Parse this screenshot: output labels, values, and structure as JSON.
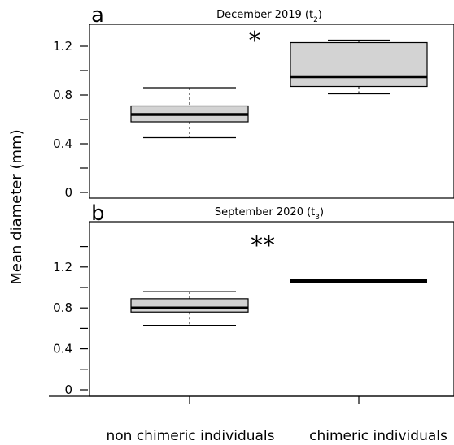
{
  "ylabel": "Mean diameter (mm)",
  "categories": [
    "non chimeric individuals",
    "chimeric individuals"
  ],
  "chart_data": [
    {
      "type": "boxplot",
      "panel_letter": "a",
      "title": "December 2019 (t",
      "title_sub": "2",
      "title_end": ")",
      "ylabel": "Mean diameter (mm)",
      "categories": [
        "non chimeric individuals",
        "chimeric individuals"
      ],
      "yticks": [
        0,
        0.4,
        0.8,
        1.2
      ],
      "ytick_labels": [
        "0",
        "0.4",
        "0.8",
        "1.2"
      ],
      "ylim": [
        0,
        1.3
      ],
      "annotation": "*",
      "boxes": [
        {
          "category": "non chimeric individuals",
          "min": 0.45,
          "q1": 0.58,
          "median": 0.64,
          "q3": 0.71,
          "max": 0.86
        },
        {
          "category": "chimeric individuals",
          "min": 0.81,
          "q1": 0.87,
          "median": 0.95,
          "q3": 1.23,
          "max": 1.25
        }
      ],
      "box_fill": "#d3d3d3"
    },
    {
      "type": "boxplot",
      "panel_letter": "b",
      "title": "September 2020 (t",
      "title_sub": "3",
      "title_end": ")",
      "ylabel": "Mean diameter (mm)",
      "categories": [
        "non chimeric individuals",
        "chimeric individuals"
      ],
      "yticks": [
        0,
        0.4,
        0.8,
        1.2
      ],
      "ytick_labels": [
        "0",
        "0.4",
        "0.8",
        "1.2"
      ],
      "ylim": [
        0,
        1.45
      ],
      "annotation": "**",
      "boxes": [
        {
          "category": "non chimeric individuals",
          "min": 0.63,
          "q1": 0.76,
          "median": 0.8,
          "q3": 0.89,
          "max": 0.96
        },
        {
          "category": "chimeric individuals",
          "min": 1.06,
          "q1": 1.06,
          "median": 1.06,
          "q3": 1.06,
          "max": 1.06
        }
      ],
      "box_fill": "#d3d3d3"
    }
  ]
}
